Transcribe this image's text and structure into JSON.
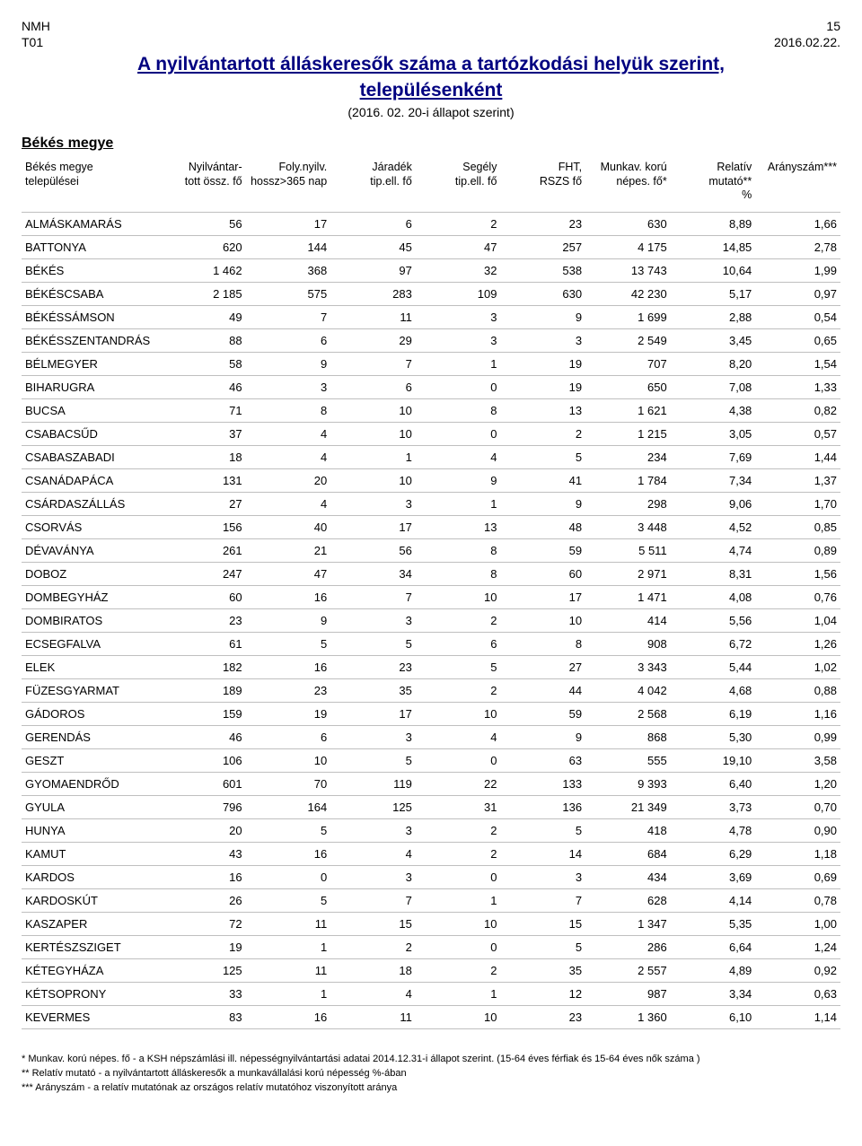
{
  "header": {
    "org": "NMH",
    "code": "T01",
    "page": "15",
    "date": "2016.02.22."
  },
  "title": {
    "line1": "A nyilvántartott álláskeresők száma a tartózkodási helyük szerint,",
    "line2": "településenként",
    "subtitle": "(2016. 02. 20-i állapot szerint)"
  },
  "region": "Békés megye",
  "table": {
    "columns": [
      "Békés megye\ntelepülései",
      "Nyilvántar-\ntott össz. fő",
      "Foly.nyilv.\nhossz>365 nap",
      "Járadék\ntip.ell. fő",
      "Segély\ntip.ell. fő",
      "FHT,\nRSZS fő",
      "Munkav. korú\nnépes. fő*",
      "Relatív\nmutató**\n%",
      "Arányszám***"
    ],
    "rows": [
      [
        "ALMÁSKAMARÁS",
        "56",
        "17",
        "6",
        "2",
        "23",
        "630",
        "8,89",
        "1,66"
      ],
      [
        "BATTONYA",
        "620",
        "144",
        "45",
        "47",
        "257",
        "4 175",
        "14,85",
        "2,78"
      ],
      [
        "BÉKÉS",
        "1 462",
        "368",
        "97",
        "32",
        "538",
        "13 743",
        "10,64",
        "1,99"
      ],
      [
        "BÉKÉSCSABA",
        "2 185",
        "575",
        "283",
        "109",
        "630",
        "42 230",
        "5,17",
        "0,97"
      ],
      [
        "BÉKÉSSÁMSON",
        "49",
        "7",
        "11",
        "3",
        "9",
        "1 699",
        "2,88",
        "0,54"
      ],
      [
        "BÉKÉSSZENTANDRÁS",
        "88",
        "6",
        "29",
        "3",
        "3",
        "2 549",
        "3,45",
        "0,65"
      ],
      [
        "BÉLMEGYER",
        "58",
        "9",
        "7",
        "1",
        "19",
        "707",
        "8,20",
        "1,54"
      ],
      [
        "BIHARUGRA",
        "46",
        "3",
        "6",
        "0",
        "19",
        "650",
        "7,08",
        "1,33"
      ],
      [
        "BUCSA",
        "71",
        "8",
        "10",
        "8",
        "13",
        "1 621",
        "4,38",
        "0,82"
      ],
      [
        "CSABACSŰD",
        "37",
        "4",
        "10",
        "0",
        "2",
        "1 215",
        "3,05",
        "0,57"
      ],
      [
        "CSABASZABADI",
        "18",
        "4",
        "1",
        "4",
        "5",
        "234",
        "7,69",
        "1,44"
      ],
      [
        "CSANÁDAPÁCA",
        "131",
        "20",
        "10",
        "9",
        "41",
        "1 784",
        "7,34",
        "1,37"
      ],
      [
        "CSÁRDASZÁLLÁS",
        "27",
        "4",
        "3",
        "1",
        "9",
        "298",
        "9,06",
        "1,70"
      ],
      [
        "CSORVÁS",
        "156",
        "40",
        "17",
        "13",
        "48",
        "3 448",
        "4,52",
        "0,85"
      ],
      [
        "DÉVAVÁNYA",
        "261",
        "21",
        "56",
        "8",
        "59",
        "5 511",
        "4,74",
        "0,89"
      ],
      [
        "DOBOZ",
        "247",
        "47",
        "34",
        "8",
        "60",
        "2 971",
        "8,31",
        "1,56"
      ],
      [
        "DOMBEGYHÁZ",
        "60",
        "16",
        "7",
        "10",
        "17",
        "1 471",
        "4,08",
        "0,76"
      ],
      [
        "DOMBIRATOS",
        "23",
        "9",
        "3",
        "2",
        "10",
        "414",
        "5,56",
        "1,04"
      ],
      [
        "ECSEGFALVA",
        "61",
        "5",
        "5",
        "6",
        "8",
        "908",
        "6,72",
        "1,26"
      ],
      [
        "ELEK",
        "182",
        "16",
        "23",
        "5",
        "27",
        "3 343",
        "5,44",
        "1,02"
      ],
      [
        "FÜZESGYARMAT",
        "189",
        "23",
        "35",
        "2",
        "44",
        "4 042",
        "4,68",
        "0,88"
      ],
      [
        "GÁDOROS",
        "159",
        "19",
        "17",
        "10",
        "59",
        "2 568",
        "6,19",
        "1,16"
      ],
      [
        "GERENDÁS",
        "46",
        "6",
        "3",
        "4",
        "9",
        "868",
        "5,30",
        "0,99"
      ],
      [
        "GESZT",
        "106",
        "10",
        "5",
        "0",
        "63",
        "555",
        "19,10",
        "3,58"
      ],
      [
        "GYOMAENDRŐD",
        "601",
        "70",
        "119",
        "22",
        "133",
        "9 393",
        "6,40",
        "1,20"
      ],
      [
        "GYULA",
        "796",
        "164",
        "125",
        "31",
        "136",
        "21 349",
        "3,73",
        "0,70"
      ],
      [
        "HUNYA",
        "20",
        "5",
        "3",
        "2",
        "5",
        "418",
        "4,78",
        "0,90"
      ],
      [
        "KAMUT",
        "43",
        "16",
        "4",
        "2",
        "14",
        "684",
        "6,29",
        "1,18"
      ],
      [
        "KARDOS",
        "16",
        "0",
        "3",
        "0",
        "3",
        "434",
        "3,69",
        "0,69"
      ],
      [
        "KARDOSKÚT",
        "26",
        "5",
        "7",
        "1",
        "7",
        "628",
        "4,14",
        "0,78"
      ],
      [
        "KASZAPER",
        "72",
        "11",
        "15",
        "10",
        "15",
        "1 347",
        "5,35",
        "1,00"
      ],
      [
        "KERTÉSZSZIGET",
        "19",
        "1",
        "2",
        "0",
        "5",
        "286",
        "6,64",
        "1,24"
      ],
      [
        "KÉTEGYHÁZA",
        "125",
        "11",
        "18",
        "2",
        "35",
        "2 557",
        "4,89",
        "0,92"
      ],
      [
        "KÉTSOPRONY",
        "33",
        "1",
        "4",
        "1",
        "12",
        "987",
        "3,34",
        "0,63"
      ],
      [
        "KEVERMES",
        "83",
        "16",
        "11",
        "10",
        "23",
        "1 360",
        "6,10",
        "1,14"
      ]
    ]
  },
  "footnotes": [
    "*    Munkav. korú népes.  fő - a KSH népszámlási ill. népességnyilvántartási adatai 2014.12.31-i állapot szerint. (15-64 éves férfiak és 15-64 éves nők száma )",
    "**   Relatív mutató - a nyilvántartott álláskeresők a munkavállalási korú népesség %-ában",
    "*** Arányszám - a relatív mutatónak az országos relatív mutatóhoz viszonyított aránya"
  ]
}
